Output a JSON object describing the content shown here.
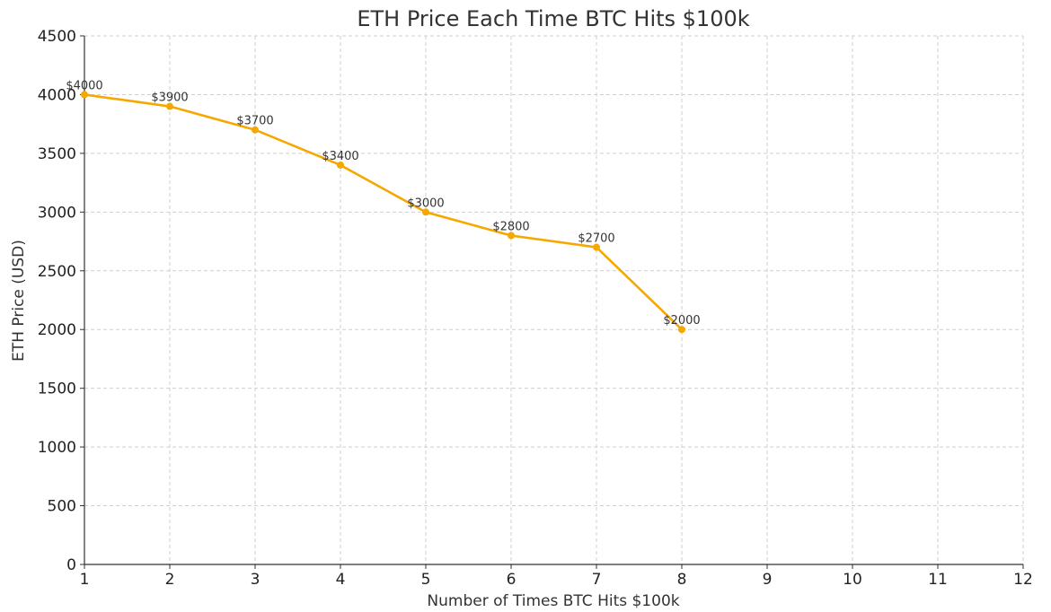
{
  "chart_data": {
    "type": "line",
    "title": "ETH Price Each Time BTC Hits $100k",
    "xlabel": "Number of Times BTC Hits $100k",
    "ylabel": "ETH Price (USD)",
    "xlim": [
      1,
      12
    ],
    "ylim": [
      0,
      4500
    ],
    "xticks": [
      1,
      2,
      3,
      4,
      5,
      6,
      7,
      8,
      9,
      10,
      11,
      12
    ],
    "yticks": [
      0,
      500,
      1000,
      1500,
      2000,
      2500,
      3000,
      3500,
      4000,
      4500
    ],
    "grid": true,
    "series": [
      {
        "name": "ETH Price",
        "color": "#f5a800",
        "x": [
          1,
          2,
          3,
          4,
          5,
          6,
          7,
          8
        ],
        "y": [
          4000,
          3900,
          3700,
          3400,
          3000,
          2800,
          2700,
          2000
        ],
        "labels": [
          "$4000",
          "$3900",
          "$3700",
          "$3400",
          "$3000",
          "$2800",
          "$2700",
          "$2000"
        ]
      }
    ]
  }
}
